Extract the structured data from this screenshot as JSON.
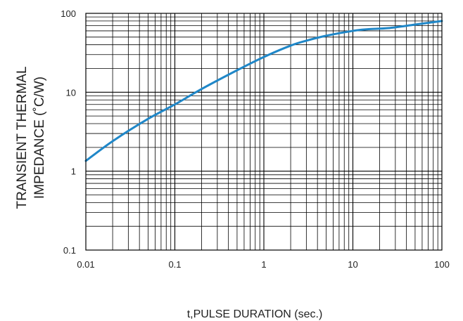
{
  "chart_data": {
    "type": "line",
    "title": "",
    "xlabel": "t,PULSE DURATION (sec.)",
    "ylabel_lines": [
      "TRANSIENT THERMAL",
      "IMPEDANCE (˚C/W)"
    ],
    "x_scale": "log",
    "y_scale": "log",
    "xlim": [
      0.01,
      100
    ],
    "ylim": [
      0.1,
      100
    ],
    "x_tick_labels": [
      "0.01",
      "0.1",
      "1",
      "10",
      "100"
    ],
    "y_tick_labels": [
      "0.1",
      "1",
      "10",
      "100"
    ],
    "grid": true,
    "series": [
      {
        "name": "",
        "color": "#1f87c8",
        "points": [
          [
            0.01,
            1.35
          ],
          [
            0.02,
            2.4
          ],
          [
            0.05,
            4.6
          ],
          [
            0.1,
            7.0
          ],
          [
            0.2,
            11.0
          ],
          [
            0.5,
            19.0
          ],
          [
            1,
            28.0
          ],
          [
            2,
            39.0
          ],
          [
            3,
            45.0
          ],
          [
            5,
            52.0
          ],
          [
            10,
            60.0
          ],
          [
            15,
            63.0
          ],
          [
            25,
            65.0
          ],
          [
            50,
            72.0
          ],
          [
            100,
            80.0
          ]
        ]
      }
    ]
  }
}
